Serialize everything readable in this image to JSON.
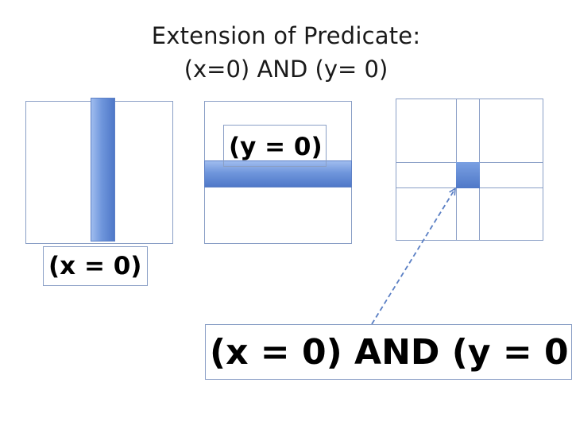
{
  "title": {
    "line1": "Extension of Predicate:",
    "line2": "(x=0) AND (y= 0)"
  },
  "panels": {
    "x_label": "(x = 0)",
    "y_label": "(y = 0)",
    "and_label": "(x = 0) AND (y = 0)"
  },
  "colors": {
    "band": "#6f96dc",
    "outline": "#8a9fc6",
    "arrow": "#5a7fc4"
  }
}
